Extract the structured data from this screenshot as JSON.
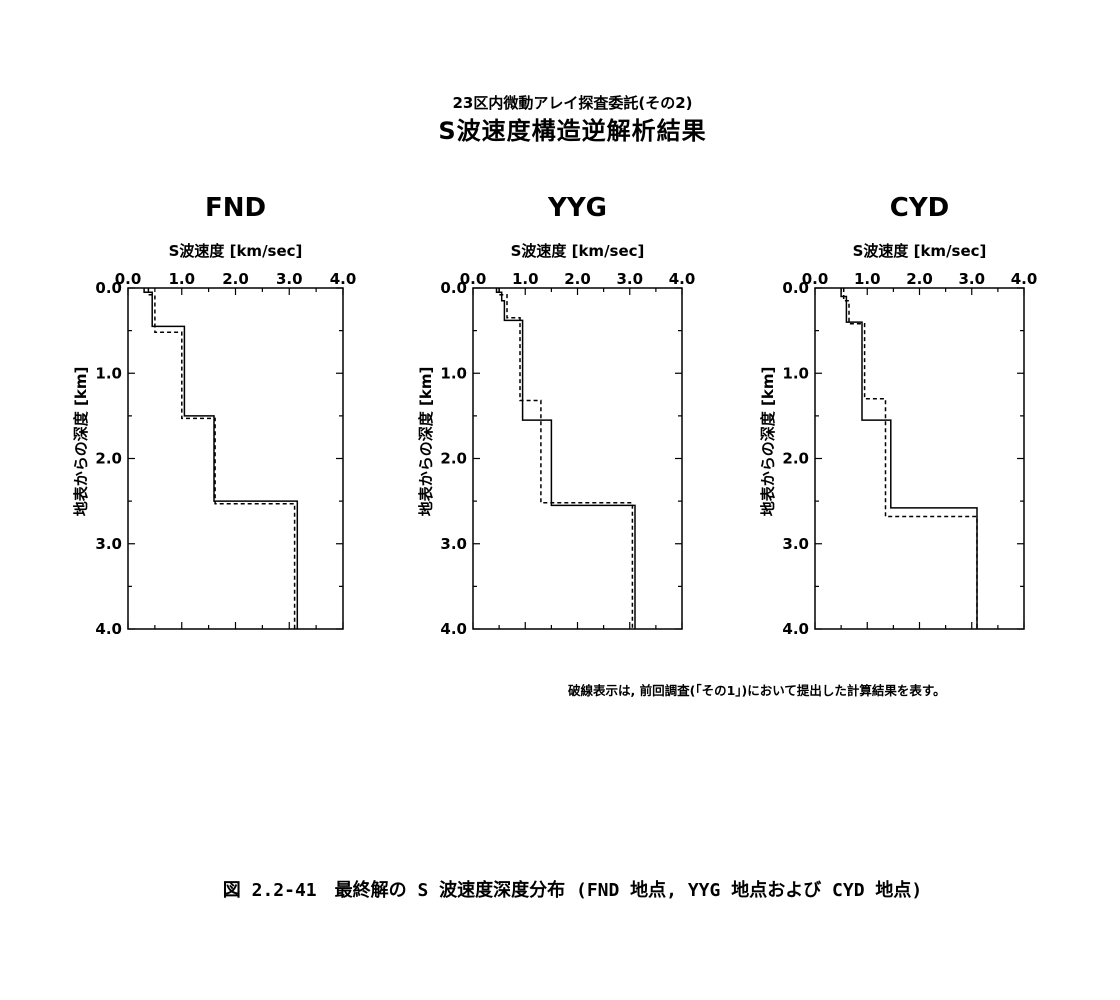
{
  "header": {
    "subtitle": "23区内微動アレイ探査委託(その2)",
    "title": "S波速度構造逆解析結果"
  },
  "note": "破線表示は, 前回調査(「その1」)において提出した計算結果を表す。",
  "caption": "図 2.2-41　最終解の S 波速度深度分布 (FND 地点, YYG 地点および CYD 地点)",
  "colors": {
    "line": "#000000",
    "background": "#ffffff"
  },
  "chart_data": [
    {
      "type": "line",
      "title": "FND",
      "xlabel": "S波速度 [km/sec]",
      "ylabel": "地表からの深度 [km]",
      "xlim": [
        0.0,
        4.0
      ],
      "ylim": [
        0.0,
        4.0
      ],
      "y_inverted": true,
      "x_ticks": [
        "0.0",
        "1.0",
        "2.0",
        "3.0",
        "4.0"
      ],
      "y_ticks": [
        "0.0",
        "1.0",
        "2.0",
        "3.0",
        "4.0"
      ],
      "series": [
        {
          "style": "solid",
          "points": [
            [
              0.3,
              0.0
            ],
            [
              0.3,
              0.05
            ],
            [
              0.45,
              0.05
            ],
            [
              0.45,
              0.45
            ],
            [
              1.05,
              0.45
            ],
            [
              1.05,
              1.5
            ],
            [
              1.6,
              1.5
            ],
            [
              1.6,
              2.5
            ],
            [
              3.15,
              2.5
            ],
            [
              3.15,
              4.0
            ]
          ]
        },
        {
          "style": "dashed",
          "points": [
            [
              0.38,
              0.0
            ],
            [
              0.38,
              0.08
            ],
            [
              0.5,
              0.08
            ],
            [
              0.5,
              0.52
            ],
            [
              1.0,
              0.52
            ],
            [
              1.0,
              1.53
            ],
            [
              1.62,
              1.53
            ],
            [
              1.62,
              2.53
            ],
            [
              3.1,
              2.53
            ],
            [
              3.1,
              4.0
            ]
          ]
        }
      ]
    },
    {
      "type": "line",
      "title": "YYG",
      "xlabel": "S波速度 [km/sec]",
      "ylabel": "地表からの深度 [km]",
      "xlim": [
        0.0,
        4.0
      ],
      "ylim": [
        0.0,
        4.0
      ],
      "y_inverted": true,
      "x_ticks": [
        "0.0",
        "1.0",
        "2.0",
        "3.0",
        "4.0"
      ],
      "y_ticks": [
        "0.0",
        "1.0",
        "2.0",
        "3.0",
        "4.0"
      ],
      "series": [
        {
          "style": "solid",
          "points": [
            [
              0.45,
              0.0
            ],
            [
              0.45,
              0.05
            ],
            [
              0.55,
              0.05
            ],
            [
              0.55,
              0.15
            ],
            [
              0.6,
              0.15
            ],
            [
              0.6,
              0.38
            ],
            [
              0.95,
              0.38
            ],
            [
              0.95,
              1.55
            ],
            [
              1.5,
              1.55
            ],
            [
              1.5,
              2.55
            ],
            [
              3.1,
              2.55
            ],
            [
              3.1,
              4.0
            ]
          ]
        },
        {
          "style": "dashed",
          "points": [
            [
              0.5,
              0.0
            ],
            [
              0.5,
              0.08
            ],
            [
              0.65,
              0.08
            ],
            [
              0.65,
              0.35
            ],
            [
              0.9,
              0.35
            ],
            [
              0.9,
              1.32
            ],
            [
              1.3,
              1.32
            ],
            [
              1.3,
              2.52
            ],
            [
              3.05,
              2.52
            ],
            [
              3.05,
              4.0
            ]
          ]
        }
      ]
    },
    {
      "type": "line",
      "title": "CYD",
      "xlabel": "S波速度 [km/sec]",
      "ylabel": "地表からの深度 [km]",
      "xlim": [
        0.0,
        4.0
      ],
      "ylim": [
        0.0,
        4.0
      ],
      "y_inverted": true,
      "x_ticks": [
        "0.0",
        "1.0",
        "2.0",
        "3.0",
        "4.0"
      ],
      "y_ticks": [
        "0.0",
        "1.0",
        "2.0",
        "3.0",
        "4.0"
      ],
      "series": [
        {
          "style": "solid",
          "points": [
            [
              0.5,
              0.0
            ],
            [
              0.5,
              0.1
            ],
            [
              0.6,
              0.1
            ],
            [
              0.6,
              0.4
            ],
            [
              0.9,
              0.4
            ],
            [
              0.9,
              1.55
            ],
            [
              1.45,
              1.55
            ],
            [
              1.45,
              2.58
            ],
            [
              3.1,
              2.58
            ],
            [
              3.1,
              4.0
            ]
          ]
        },
        {
          "style": "dashed",
          "points": [
            [
              0.55,
              0.0
            ],
            [
              0.55,
              0.15
            ],
            [
              0.65,
              0.15
            ],
            [
              0.65,
              0.42
            ],
            [
              0.95,
              0.42
            ],
            [
              0.95,
              1.3
            ],
            [
              1.35,
              1.3
            ],
            [
              1.35,
              2.68
            ],
            [
              3.1,
              2.68
            ],
            [
              3.1,
              4.0
            ]
          ]
        }
      ]
    }
  ]
}
